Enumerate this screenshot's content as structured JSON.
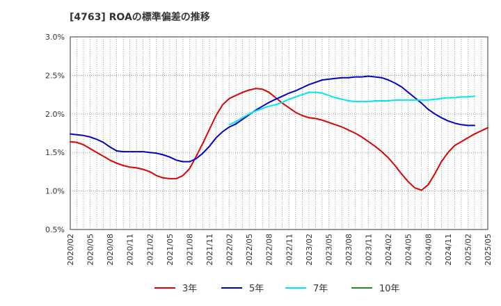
{
  "chart_data": {
    "type": "line",
    "title": "[4763]  ROAの標準偏差の推移",
    "xlabel": "",
    "ylabel": "",
    "ylim": [
      0.5,
      3.0
    ],
    "y_ticks": [
      {
        "v": 3.0,
        "label": "3.0%"
      },
      {
        "v": 2.5,
        "label": "2.5%"
      },
      {
        "v": 2.0,
        "label": "2.0%"
      },
      {
        "v": 1.5,
        "label": "1.5%"
      },
      {
        "v": 1.0,
        "label": "1.0%"
      },
      {
        "v": 0.5,
        "label": "0.5%"
      }
    ],
    "x_ticks": [
      "2020/02",
      "2020/05",
      "2020/08",
      "2020/11",
      "2021/02",
      "2021/05",
      "2021/08",
      "2021/11",
      "2022/02",
      "2022/05",
      "2022/08",
      "2022/11",
      "2023/02",
      "2023/05",
      "2023/08",
      "2023/11",
      "2024/02",
      "2024/05",
      "2024/08",
      "2024/11",
      "2025/02",
      "2025/05"
    ],
    "grid": true,
    "legend_position": "bottom",
    "series": [
      {
        "name": "3年",
        "color": "#dd0000",
        "points": [
          [
            "2020/02",
            1.64
          ],
          [
            "2020/03",
            1.63
          ],
          [
            "2020/04",
            1.6
          ],
          [
            "2020/05",
            1.55
          ],
          [
            "2020/06",
            1.5
          ],
          [
            "2020/07",
            1.45
          ],
          [
            "2020/08",
            1.4
          ],
          [
            "2020/09",
            1.36
          ],
          [
            "2020/10",
            1.33
          ],
          [
            "2020/11",
            1.31
          ],
          [
            "2020/12",
            1.3
          ],
          [
            "2021/01",
            1.28
          ],
          [
            "2021/02",
            1.25
          ],
          [
            "2021/03",
            1.2
          ],
          [
            "2021/04",
            1.17
          ],
          [
            "2021/05",
            1.16
          ],
          [
            "2021/06",
            1.16
          ],
          [
            "2021/07",
            1.2
          ],
          [
            "2021/08",
            1.29
          ],
          [
            "2021/09",
            1.45
          ],
          [
            "2021/10",
            1.62
          ],
          [
            "2021/11",
            1.8
          ],
          [
            "2021/12",
            1.98
          ],
          [
            "2022/01",
            2.12
          ],
          [
            "2022/02",
            2.2
          ],
          [
            "2022/03",
            2.24
          ],
          [
            "2022/04",
            2.28
          ],
          [
            "2022/05",
            2.31
          ],
          [
            "2022/06",
            2.33
          ],
          [
            "2022/07",
            2.32
          ],
          [
            "2022/08",
            2.28
          ],
          [
            "2022/09",
            2.21
          ],
          [
            "2022/10",
            2.14
          ],
          [
            "2022/11",
            2.08
          ],
          [
            "2022/12",
            2.02
          ],
          [
            "2023/01",
            1.98
          ],
          [
            "2023/02",
            1.95
          ],
          [
            "2023/03",
            1.94
          ],
          [
            "2023/04",
            1.92
          ],
          [
            "2023/05",
            1.89
          ],
          [
            "2023/06",
            1.86
          ],
          [
            "2023/07",
            1.83
          ],
          [
            "2023/08",
            1.79
          ],
          [
            "2023/09",
            1.75
          ],
          [
            "2023/10",
            1.7
          ],
          [
            "2023/11",
            1.64
          ],
          [
            "2023/12",
            1.58
          ],
          [
            "2024/01",
            1.51
          ],
          [
            "2024/02",
            1.43
          ],
          [
            "2024/03",
            1.33
          ],
          [
            "2024/04",
            1.22
          ],
          [
            "2024/05",
            1.12
          ],
          [
            "2024/06",
            1.04
          ],
          [
            "2024/07",
            1.01
          ],
          [
            "2024/08",
            1.08
          ],
          [
            "2024/09",
            1.22
          ],
          [
            "2024/10",
            1.38
          ],
          [
            "2024/11",
            1.5
          ],
          [
            "2024/12",
            1.59
          ],
          [
            "2025/01",
            1.64
          ],
          [
            "2025/02",
            1.69
          ],
          [
            "2025/03",
            1.74
          ],
          [
            "2025/04",
            1.78
          ],
          [
            "2025/05",
            1.82
          ]
        ]
      },
      {
        "name": "5年",
        "color": "#0000cc",
        "points": [
          [
            "2020/02",
            1.74
          ],
          [
            "2020/03",
            1.73
          ],
          [
            "2020/04",
            1.72
          ],
          [
            "2020/05",
            1.7
          ],
          [
            "2020/06",
            1.67
          ],
          [
            "2020/07",
            1.63
          ],
          [
            "2020/08",
            1.57
          ],
          [
            "2020/09",
            1.52
          ],
          [
            "2020/10",
            1.51
          ],
          [
            "2020/11",
            1.51
          ],
          [
            "2020/12",
            1.51
          ],
          [
            "2021/01",
            1.51
          ],
          [
            "2021/02",
            1.5
          ],
          [
            "2021/03",
            1.49
          ],
          [
            "2021/04",
            1.47
          ],
          [
            "2021/05",
            1.44
          ],
          [
            "2021/06",
            1.4
          ],
          [
            "2021/07",
            1.38
          ],
          [
            "2021/08",
            1.38
          ],
          [
            "2021/09",
            1.42
          ],
          [
            "2021/10",
            1.49
          ],
          [
            "2021/11",
            1.58
          ],
          [
            "2021/12",
            1.69
          ],
          [
            "2022/01",
            1.77
          ],
          [
            "2022/02",
            1.83
          ],
          [
            "2022/03",
            1.87
          ],
          [
            "2022/04",
            1.93
          ],
          [
            "2022/05",
            1.99
          ],
          [
            "2022/06",
            2.05
          ],
          [
            "2022/07",
            2.1
          ],
          [
            "2022/08",
            2.15
          ],
          [
            "2022/09",
            2.19
          ],
          [
            "2022/10",
            2.23
          ],
          [
            "2022/11",
            2.27
          ],
          [
            "2022/12",
            2.3
          ],
          [
            "2023/01",
            2.34
          ],
          [
            "2023/02",
            2.38
          ],
          [
            "2023/03",
            2.41
          ],
          [
            "2023/04",
            2.44
          ],
          [
            "2023/05",
            2.45
          ],
          [
            "2023/06",
            2.46
          ],
          [
            "2023/07",
            2.47
          ],
          [
            "2023/08",
            2.47
          ],
          [
            "2023/09",
            2.48
          ],
          [
            "2023/10",
            2.48
          ],
          [
            "2023/11",
            2.49
          ],
          [
            "2023/12",
            2.48
          ],
          [
            "2024/01",
            2.47
          ],
          [
            "2024/02",
            2.44
          ],
          [
            "2024/03",
            2.4
          ],
          [
            "2024/04",
            2.35
          ],
          [
            "2024/05",
            2.28
          ],
          [
            "2024/06",
            2.21
          ],
          [
            "2024/07",
            2.14
          ],
          [
            "2024/08",
            2.06
          ],
          [
            "2024/09",
            2.0
          ],
          [
            "2024/10",
            1.95
          ],
          [
            "2024/11",
            1.91
          ],
          [
            "2024/12",
            1.88
          ],
          [
            "2025/01",
            1.86
          ],
          [
            "2025/02",
            1.85
          ],
          [
            "2025/03",
            1.85
          ]
        ]
      },
      {
        "name": "7年",
        "color": "#00e5ee",
        "points": [
          [
            "2022/02",
            1.86
          ],
          [
            "2022/03",
            1.9
          ],
          [
            "2022/04",
            1.95
          ],
          [
            "2022/05",
            2.0
          ],
          [
            "2022/06",
            2.04
          ],
          [
            "2022/07",
            2.07
          ],
          [
            "2022/08",
            2.1
          ],
          [
            "2022/09",
            2.12
          ],
          [
            "2022/10",
            2.15
          ],
          [
            "2022/11",
            2.19
          ],
          [
            "2022/12",
            2.22
          ],
          [
            "2023/01",
            2.25
          ],
          [
            "2023/02",
            2.28
          ],
          [
            "2023/03",
            2.28
          ],
          [
            "2023/04",
            2.27
          ],
          [
            "2023/05",
            2.24
          ],
          [
            "2023/06",
            2.21
          ],
          [
            "2023/07",
            2.19
          ],
          [
            "2023/08",
            2.17
          ],
          [
            "2023/09",
            2.16
          ],
          [
            "2023/10",
            2.16
          ],
          [
            "2023/11",
            2.16
          ],
          [
            "2023/12",
            2.17
          ],
          [
            "2024/01",
            2.17
          ],
          [
            "2024/02",
            2.17
          ],
          [
            "2024/03",
            2.18
          ],
          [
            "2024/04",
            2.18
          ],
          [
            "2024/05",
            2.18
          ],
          [
            "2024/06",
            2.18
          ],
          [
            "2024/07",
            2.18
          ],
          [
            "2024/08",
            2.18
          ],
          [
            "2024/09",
            2.19
          ],
          [
            "2024/10",
            2.2
          ],
          [
            "2024/11",
            2.21
          ],
          [
            "2024/12",
            2.21
          ],
          [
            "2025/01",
            2.22
          ],
          [
            "2025/02",
            2.22
          ],
          [
            "2025/03",
            2.23
          ]
        ]
      },
      {
        "name": "10年",
        "color": "#228b22",
        "points": []
      }
    ]
  }
}
